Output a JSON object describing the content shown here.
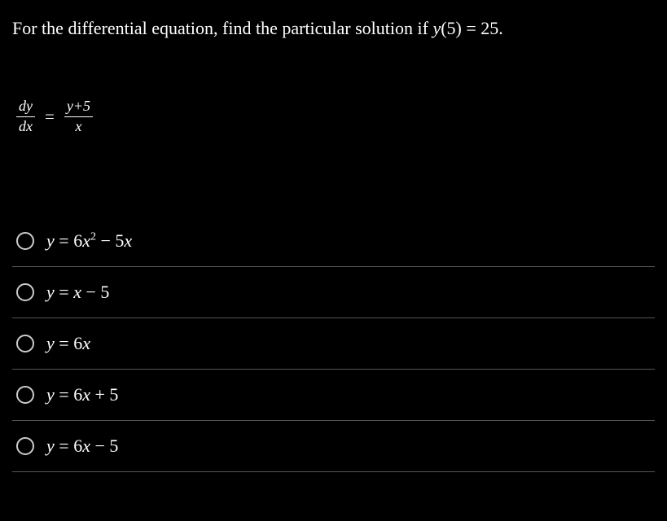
{
  "background_color": "#000000",
  "text_color": "#ffffff",
  "border_color": "#555555",
  "radio_border_color": "#cccccc",
  "font_family": "Times New Roman",
  "question": {
    "prefix": "For the differential equation, find the particular solution if ",
    "condition_var": "y",
    "condition_input": "(5) = 25.",
    "full_text": "For the differential equation, find the particular solution if y (5) = 25."
  },
  "equation": {
    "lhs_num": "dy",
    "lhs_den": "dx",
    "equals": "=",
    "rhs_num": "y+5",
    "rhs_den": "x"
  },
  "options": [
    {
      "y_var": "y",
      "equals": " = ",
      "coef": "6",
      "x_var": "x",
      "exponent": "2",
      "rest": " − 5",
      "x_var2": "x",
      "has_exponent": true,
      "has_second_x": true
    },
    {
      "y_var": "y",
      "equals": " = ",
      "coef": "",
      "x_var": "x",
      "rest": " − 5",
      "has_exponent": false,
      "has_second_x": false
    },
    {
      "y_var": "y",
      "equals": " = ",
      "coef": "6",
      "x_var": "x",
      "rest": "",
      "has_exponent": false,
      "has_second_x": false
    },
    {
      "y_var": "y",
      "equals": " = ",
      "coef": "6",
      "x_var": "x",
      "rest": " + 5",
      "has_exponent": false,
      "has_second_x": false
    },
    {
      "y_var": "y",
      "equals": " = ",
      "coef": "6",
      "x_var": "x",
      "rest": " − 5",
      "has_exponent": false,
      "has_second_x": false
    }
  ]
}
